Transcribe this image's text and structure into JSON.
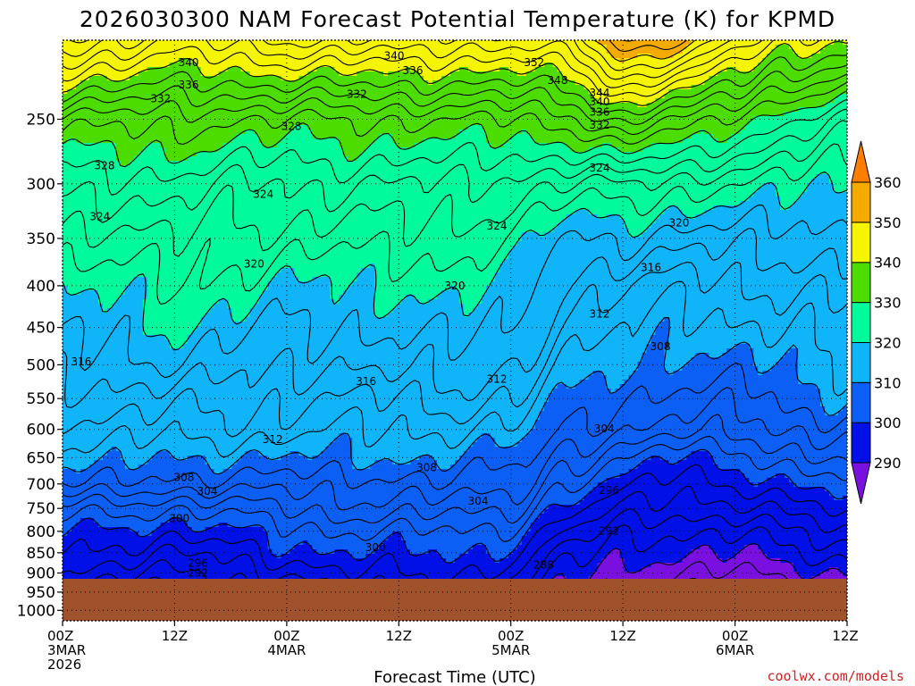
{
  "chart_data": {
    "type": "contour",
    "title": "2026030300 NAM Forecast Potential Temperature (K) for KPMD",
    "xlabel": "Forecast Time (UTC)",
    "credit": "coolwx.com/models",
    "y_axis": {
      "scale": "log-pressure",
      "inverted": true,
      "ticks": [
        250,
        300,
        350,
        400,
        450,
        500,
        550,
        600,
        650,
        700,
        750,
        800,
        850,
        900,
        950,
        1000
      ],
      "tick_labels": [
        "250",
        "300",
        "350",
        "400",
        "450",
        "500",
        "550",
        "600",
        "650",
        "700",
        "750",
        "800",
        "850",
        "900",
        "950",
        "1000"
      ],
      "range": [
        200,
        1030
      ]
    },
    "x_axis": {
      "range_hours": [
        0,
        84
      ],
      "ticks": [
        {
          "hour": 0,
          "line1": "00Z",
          "line2": "3MAR",
          "line3": "2026"
        },
        {
          "hour": 12,
          "line1": "12Z",
          "line2": "",
          "line3": ""
        },
        {
          "hour": 24,
          "line1": "00Z",
          "line2": "4MAR",
          "line3": ""
        },
        {
          "hour": 36,
          "line1": "12Z",
          "line2": "",
          "line3": ""
        },
        {
          "hour": 48,
          "line1": "00Z",
          "line2": "5MAR",
          "line3": ""
        },
        {
          "hour": 60,
          "line1": "12Z",
          "line2": "",
          "line3": ""
        },
        {
          "hour": 72,
          "line1": "00Z",
          "line2": "6MAR",
          "line3": ""
        },
        {
          "hour": 84,
          "line1": "12Z",
          "line2": "",
          "line3": ""
        }
      ]
    },
    "grid": true,
    "surface_pressure_hpa": 915,
    "colorbar": {
      "levels": [
        290,
        300,
        310,
        320,
        330,
        340,
        350,
        360
      ],
      "level_labels": [
        "290",
        "300",
        "310",
        "320",
        "330",
        "340",
        "350",
        "360"
      ],
      "colors": [
        "#7a10e0",
        "#0010e6",
        "#0c5ff5",
        "#10b4f8",
        "#00fa9c",
        "#4ddc00",
        "#f5f500",
        "#f5aa00",
        "#ff7d00"
      ],
      "extend": "both",
      "ground_color": "#a0522d"
    },
    "contour_interval_k": 2,
    "profiles": [
      {
        "hour": 0,
        "theta": {
          "200": 348,
          "250": 333,
          "300": 327,
          "350": 323,
          "400": 320,
          "500": 317,
          "550": 315,
          "600": 313,
          "650": 311,
          "700": 308,
          "750": 303,
          "800": 300,
          "850": 298,
          "900": 296
        }
      },
      {
        "hour": 6,
        "theta": {
          "200": 346,
          "250": 333,
          "300": 327,
          "350": 323,
          "400": 321,
          "500": 317,
          "550": 315,
          "600": 313,
          "650": 311,
          "700": 308,
          "750": 303,
          "800": 299,
          "850": 297,
          "900": 294
        }
      },
      {
        "hour": 12,
        "theta": {
          "200": 344,
          "250": 333,
          "300": 327,
          "350": 324,
          "400": 322,
          "500": 318,
          "550": 315,
          "600": 313,
          "650": 310,
          "700": 307,
          "750": 302,
          "800": 299,
          "850": 296,
          "900": 294
        }
      },
      {
        "hour": 18,
        "theta": {
          "200": 345,
          "250": 332,
          "300": 326,
          "350": 323,
          "400": 321,
          "500": 317,
          "550": 315,
          "600": 313,
          "650": 310,
          "700": 307,
          "750": 303,
          "800": 300,
          "850": 297,
          "900": 295
        }
      },
      {
        "hour": 24,
        "theta": {
          "200": 346,
          "250": 332,
          "300": 326,
          "350": 323,
          "400": 320,
          "500": 316,
          "550": 314,
          "600": 313,
          "650": 310,
          "700": 307,
          "750": 304,
          "800": 301,
          "850": 299,
          "900": 296
        }
      },
      {
        "hour": 30,
        "theta": {
          "200": 346,
          "250": 332,
          "300": 326,
          "350": 323,
          "400": 320,
          "500": 316,
          "550": 314,
          "600": 312,
          "650": 310,
          "700": 307,
          "750": 305,
          "800": 302,
          "850": 300,
          "900": 298
        }
      },
      {
        "hour": 36,
        "theta": {
          "200": 346,
          "250": 332,
          "300": 326,
          "350": 323,
          "400": 320,
          "500": 317,
          "550": 314,
          "600": 312,
          "650": 310,
          "700": 307,
          "750": 305,
          "800": 302,
          "850": 300,
          "900": 298
        }
      },
      {
        "hour": 42,
        "theta": {
          "200": 345,
          "250": 332,
          "300": 326,
          "350": 323,
          "400": 321,
          "500": 317,
          "550": 315,
          "600": 312,
          "650": 310,
          "700": 308,
          "750": 305,
          "800": 302,
          "850": 300,
          "900": 298
        }
      },
      {
        "hour": 48,
        "theta": {
          "200": 345,
          "250": 332,
          "300": 325,
          "350": 322,
          "400": 320,
          "500": 316,
          "550": 314,
          "600": 312,
          "650": 309,
          "700": 307,
          "750": 304,
          "800": 301,
          "850": 299,
          "900": 297
        }
      },
      {
        "hour": 54,
        "theta": {
          "200": 346,
          "250": 333,
          "300": 324,
          "350": 318,
          "400": 315,
          "500": 312,
          "550": 310,
          "600": 308,
          "650": 305,
          "700": 302,
          "750": 299,
          "800": 296,
          "850": 293,
          "900": 291
        }
      },
      {
        "hour": 60,
        "theta": {
          "200": 354,
          "250": 337,
          "300": 324,
          "350": 318,
          "400": 314,
          "500": 311,
          "550": 308,
          "600": 306,
          "650": 302,
          "700": 299,
          "750": 296,
          "800": 293,
          "850": 291,
          "900": 289
        }
      },
      {
        "hour": 66,
        "theta": {
          "200": 352,
          "250": 334,
          "300": 323,
          "350": 317,
          "400": 313,
          "500": 309,
          "550": 307,
          "600": 305,
          "650": 300,
          "700": 297,
          "750": 295,
          "800": 292,
          "850": 290,
          "900": 288
        }
      },
      {
        "hour": 72,
        "theta": {
          "200": 346,
          "250": 331,
          "300": 322,
          "350": 317,
          "400": 314,
          "500": 309,
          "550": 307,
          "600": 305,
          "650": 301,
          "700": 298,
          "750": 295,
          "800": 292,
          "850": 290,
          "900": 288
        }
      },
      {
        "hour": 78,
        "theta": {
          "200": 342,
          "250": 328,
          "300": 321,
          "350": 317,
          "400": 314,
          "500": 311,
          "550": 309,
          "600": 306,
          "650": 303,
          "700": 300,
          "750": 297,
          "800": 294,
          "850": 292,
          "900": 289
        }
      },
      {
        "hour": 84,
        "theta": {
          "200": 340,
          "250": 326,
          "300": 320,
          "350": 317,
          "400": 315,
          "500": 312,
          "550": 310,
          "600": 307,
          "650": 305,
          "700": 302,
          "750": 299,
          "800": 296,
          "850": 293,
          "900": 290
        }
      }
    ],
    "contour_labels": [
      {
        "text": "340",
        "hour": 13.5,
        "p": 213
      },
      {
        "text": "336",
        "hour": 13.5,
        "p": 227
      },
      {
        "text": "332",
        "hour": 10.5,
        "p": 236
      },
      {
        "text": "332",
        "hour": 31.5,
        "p": 233
      },
      {
        "text": "340",
        "hour": 35.5,
        "p": 209
      },
      {
        "text": "336",
        "hour": 37.5,
        "p": 218
      },
      {
        "text": "352",
        "hour": 50.5,
        "p": 213
      },
      {
        "text": "348",
        "hour": 53,
        "p": 224
      },
      {
        "text": "344",
        "hour": 57.5,
        "p": 232
      },
      {
        "text": "340",
        "hour": 57.5,
        "p": 238
      },
      {
        "text": "336",
        "hour": 57.5,
        "p": 245
      },
      {
        "text": "332",
        "hour": 57.5,
        "p": 254
      },
      {
        "text": "328",
        "hour": 24.5,
        "p": 255
      },
      {
        "text": "328",
        "hour": 4.5,
        "p": 285
      },
      {
        "text": "324",
        "hour": 57.5,
        "p": 287
      },
      {
        "text": "324",
        "hour": 21.5,
        "p": 309
      },
      {
        "text": "324",
        "hour": 4,
        "p": 329
      },
      {
        "text": "324",
        "hour": 46.5,
        "p": 338
      },
      {
        "text": "320",
        "hour": 66,
        "p": 335
      },
      {
        "text": "320",
        "hour": 20.5,
        "p": 376
      },
      {
        "text": "316",
        "hour": 63,
        "p": 380
      },
      {
        "text": "320",
        "hour": 42,
        "p": 400
      },
      {
        "text": "312",
        "hour": 57.5,
        "p": 433
      },
      {
        "text": "308",
        "hour": 64,
        "p": 475
      },
      {
        "text": "316",
        "hour": 2,
        "p": 496
      },
      {
        "text": "316",
        "hour": 32.5,
        "p": 524
      },
      {
        "text": "312",
        "hour": 46.5,
        "p": 521
      },
      {
        "text": "304",
        "hour": 58,
        "p": 599
      },
      {
        "text": "312",
        "hour": 22.5,
        "p": 617
      },
      {
        "text": "308",
        "hour": 39,
        "p": 668
      },
      {
        "text": "308",
        "hour": 13,
        "p": 687
      },
      {
        "text": "304",
        "hour": 15.5,
        "p": 715
      },
      {
        "text": "304",
        "hour": 44.5,
        "p": 735
      },
      {
        "text": "296",
        "hour": 58.5,
        "p": 713
      },
      {
        "text": "300",
        "hour": 12.5,
        "p": 772
      },
      {
        "text": "292",
        "hour": 58.5,
        "p": 799
      },
      {
        "text": "300",
        "hour": 33.5,
        "p": 838
      },
      {
        "text": "296",
        "hour": 14.5,
        "p": 875
      },
      {
        "text": "292",
        "hour": 14.5,
        "p": 900
      },
      {
        "text": "288",
        "hour": 51.5,
        "p": 880
      }
    ]
  }
}
